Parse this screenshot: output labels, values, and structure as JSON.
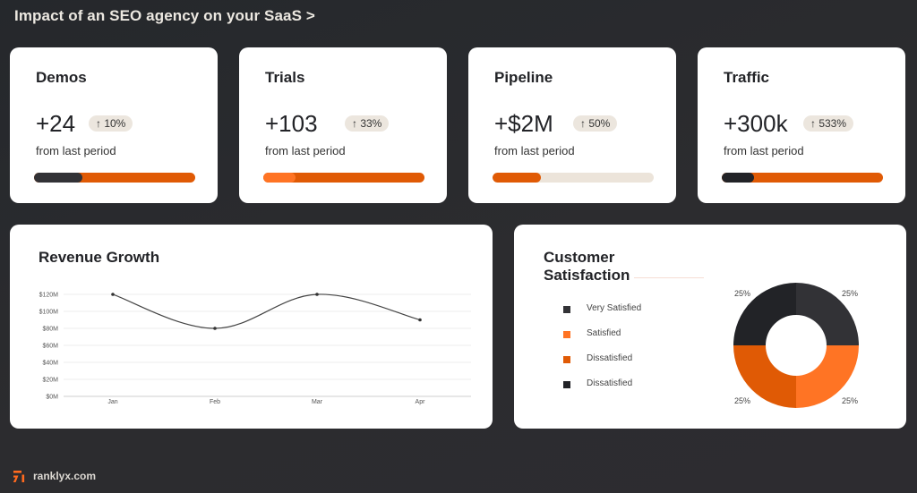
{
  "header": {
    "title": "Impact of an SEO agency on your SaaS >"
  },
  "colors": {
    "orange": "#e05a05",
    "orange_light": "#ff7424",
    "dark": "#323236",
    "darkest": "#222327",
    "badge_bg": "#ece6de",
    "track_light": "#ece4da"
  },
  "kpis": [
    {
      "title": "Demos",
      "value": "+24",
      "badge": "↑ 10%",
      "subtitle": "from last period"
    },
    {
      "title": "Trials",
      "value": "+103",
      "badge": "↑ 33%",
      "subtitle": "from last period"
    },
    {
      "title": "Pipeline",
      "value": "+$2M",
      "badge": "↑ 50%",
      "subtitle": "from last period"
    },
    {
      "title": "Traffic",
      "value": "+300k",
      "badge": "↑ 533%",
      "subtitle": "from last period"
    }
  ],
  "revenue": {
    "title": "Revenue Growth"
  },
  "satisfaction": {
    "title": "Customer Satisfaction",
    "legend": [
      {
        "label": "Very Satisfied",
        "color": "#323236"
      },
      {
        "label": "Satisfied",
        "color": "#ff7424"
      },
      {
        "label": "Dissatisfied",
        "color": "#e05a05"
      },
      {
        "label": "Dissatisfied",
        "color": "#222327"
      }
    ],
    "slice_labels": [
      "25%",
      "25%",
      "25%",
      "25%"
    ]
  },
  "footer": {
    "brand": "ranklyx.com"
  },
  "chart_data": [
    {
      "type": "line",
      "title": "Revenue Growth",
      "categories": [
        "Jan",
        "Feb",
        "Mar",
        "Apr"
      ],
      "values": [
        120,
        80,
        120,
        90
      ],
      "unit": "$M",
      "yticks": [
        "$0M",
        "$20M",
        "$40M",
        "$60M",
        "$80M",
        "$100M",
        "$120M"
      ],
      "ylim": [
        0,
        120
      ],
      "grid": true,
      "xlabel": "",
      "ylabel": ""
    },
    {
      "type": "pie",
      "title": "Customer Satisfaction",
      "donut": true,
      "categories": [
        "Very Satisfied",
        "Satisfied",
        "Dissatisfied",
        "Dissatisfied"
      ],
      "values": [
        25,
        25,
        25,
        25
      ],
      "colors": [
        "#323236",
        "#ff7424",
        "#e05a05",
        "#222327"
      ],
      "legend_position": "left"
    },
    {
      "type": "bar",
      "title": "KPI progress bars",
      "categories": [
        "Demos",
        "Trials",
        "Pipeline",
        "Traffic"
      ],
      "values": [
        30,
        20,
        30,
        20
      ],
      "unit": "% fill (approx.)"
    }
  ]
}
